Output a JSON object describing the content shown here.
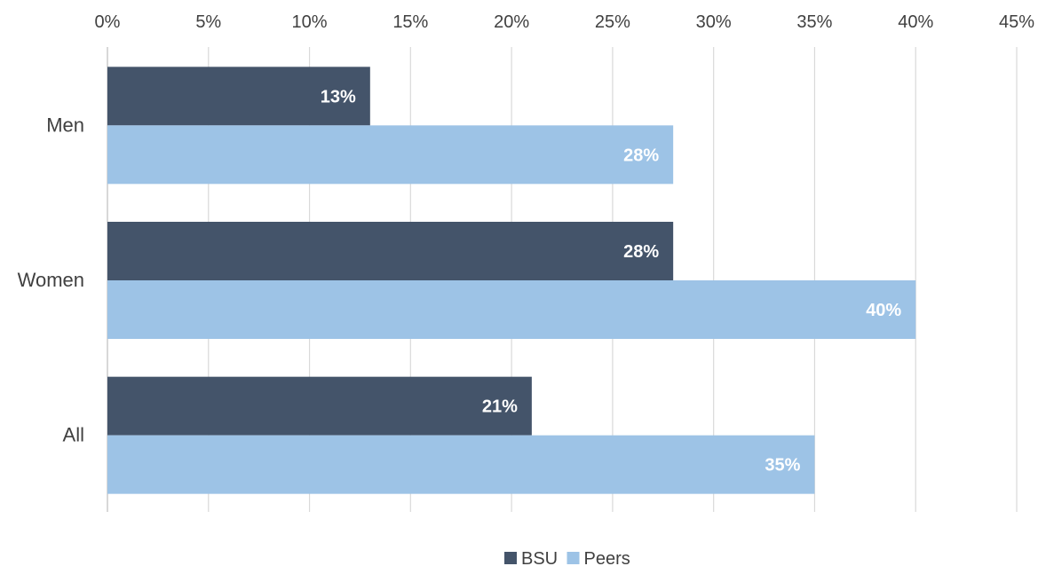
{
  "chart_data": {
    "type": "bar",
    "orientation": "horizontal",
    "categories": [
      "Men",
      "Women",
      "All"
    ],
    "series": [
      {
        "name": "BSU",
        "values": [
          13,
          28,
          21
        ],
        "value_labels": [
          "13%",
          "28%",
          "21%"
        ],
        "color": "#44546A"
      },
      {
        "name": "Peers",
        "values": [
          28,
          40,
          35
        ],
        "value_labels": [
          "28%",
          "40%",
          "35%"
        ],
        "color": "#9DC3E6"
      }
    ],
    "x_ticks": [
      "0%",
      "5%",
      "10%",
      "15%",
      "20%",
      "25%",
      "30%",
      "35%",
      "40%",
      "45%"
    ],
    "xlim": [
      0,
      45
    ],
    "x_axis_position": "top",
    "grid": true,
    "legend_position": "bottom"
  }
}
